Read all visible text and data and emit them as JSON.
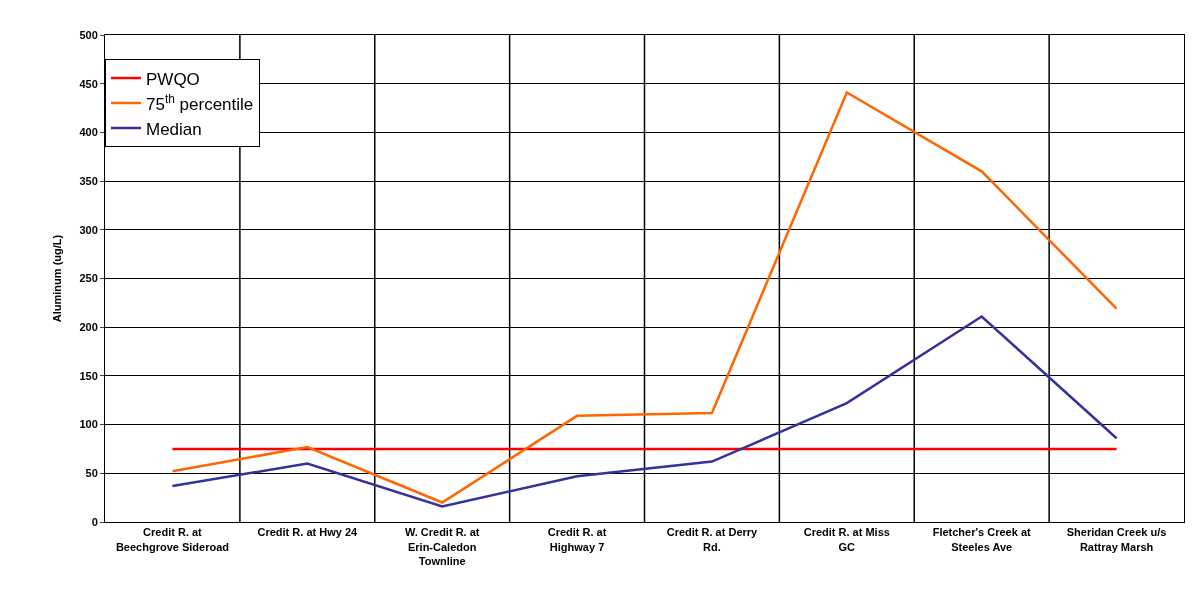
{
  "chart_data": {
    "type": "line",
    "ylabel": "Aluminum (ug/L)",
    "categories": [
      "Credit R. at Beechgrove Sideroad",
      "Credit R. at Hwy 24",
      "W. Credit R. at Erin-Caledon Townline",
      "Credit R. at Highway 7",
      "Credit R. at Derry Rd.",
      "Credit R. at Miss GC",
      "Fletcher's Creek at Steeles Ave",
      "Sheridan Creek u/s Rattray Marsh"
    ],
    "series": [
      {
        "name": "PWQO",
        "color": "#ff0000",
        "values": [
          75,
          75,
          75,
          75,
          75,
          75,
          75,
          75
        ]
      },
      {
        "name": "75$^{th}$ percentile",
        "color": "#ff6600",
        "values": [
          52,
          77,
          20,
          109,
          112,
          441,
          360,
          219
        ]
      },
      {
        "name": "Median",
        "color": "#333399",
        "values": [
          37,
          60,
          16,
          47,
          62,
          122,
          211,
          86
        ]
      }
    ],
    "ylim": [
      0,
      500
    ],
    "yticks": [
      0,
      50,
      100,
      150,
      200,
      250,
      300,
      350,
      400,
      450,
      500
    ],
    "grid": true,
    "legend": "top left",
    "marker": "none",
    "line_style": "solid"
  }
}
